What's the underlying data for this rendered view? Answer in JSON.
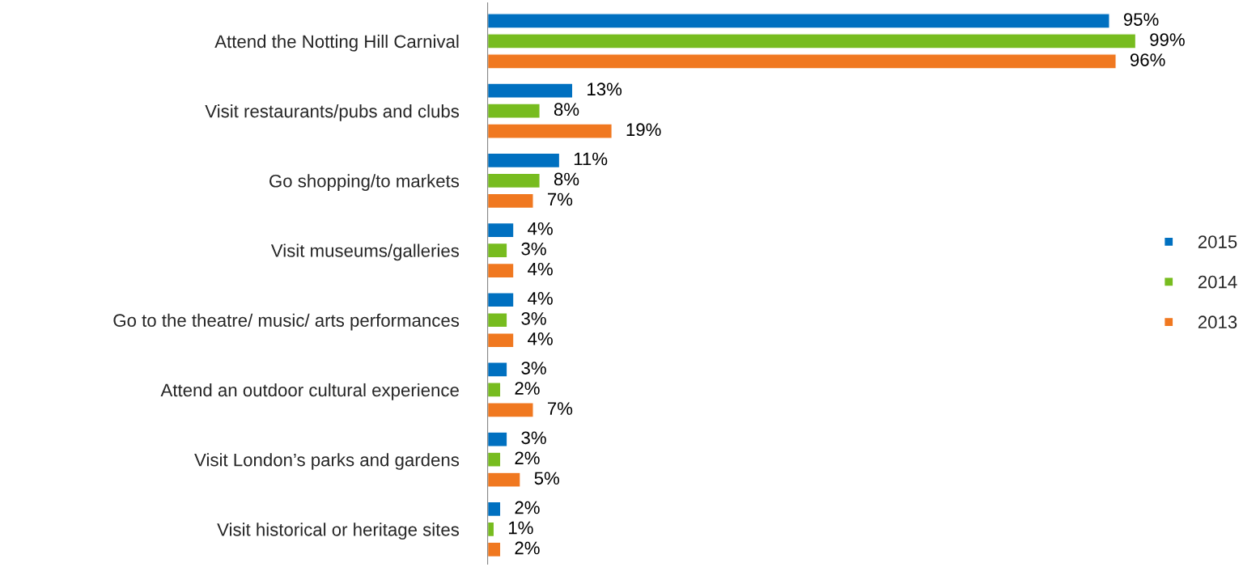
{
  "chart_data": {
    "type": "bar",
    "orientation": "horizontal",
    "categories": [
      "Attend the Notting Hill Carnival",
      "Visit restaurants/pubs and clubs",
      "Go shopping/to markets",
      "Visit museums/galleries",
      "Go to the theatre/ music/ arts performances",
      "Attend an outdoor cultural experience",
      "Visit London’s parks and gardens",
      "Visit historical or heritage sites"
    ],
    "series": [
      {
        "name": "2015",
        "color": "#0070c0",
        "values": [
          95,
          13,
          11,
          4,
          4,
          3,
          3,
          2
        ],
        "value_labels": [
          "95%",
          "13%",
          "11%",
          "4%",
          "4%",
          "3%",
          "3%",
          "2%"
        ]
      },
      {
        "name": "2014",
        "color": "#77bc1f",
        "values": [
          99,
          8,
          8,
          3,
          3,
          2,
          2,
          1
        ],
        "value_labels": [
          "99%",
          "8%",
          "8%",
          "3%",
          "3%",
          "2%",
          "2%",
          "1%"
        ]
      },
      {
        "name": "2013",
        "color": "#f07820",
        "values": [
          96,
          19,
          7,
          4,
          4,
          7,
          5,
          2
        ],
        "value_labels": [
          "96%",
          "19%",
          "7%",
          "4%",
          "4%",
          "7%",
          "5%",
          "2%"
        ]
      }
    ],
    "legend": "right",
    "grid": false
  }
}
